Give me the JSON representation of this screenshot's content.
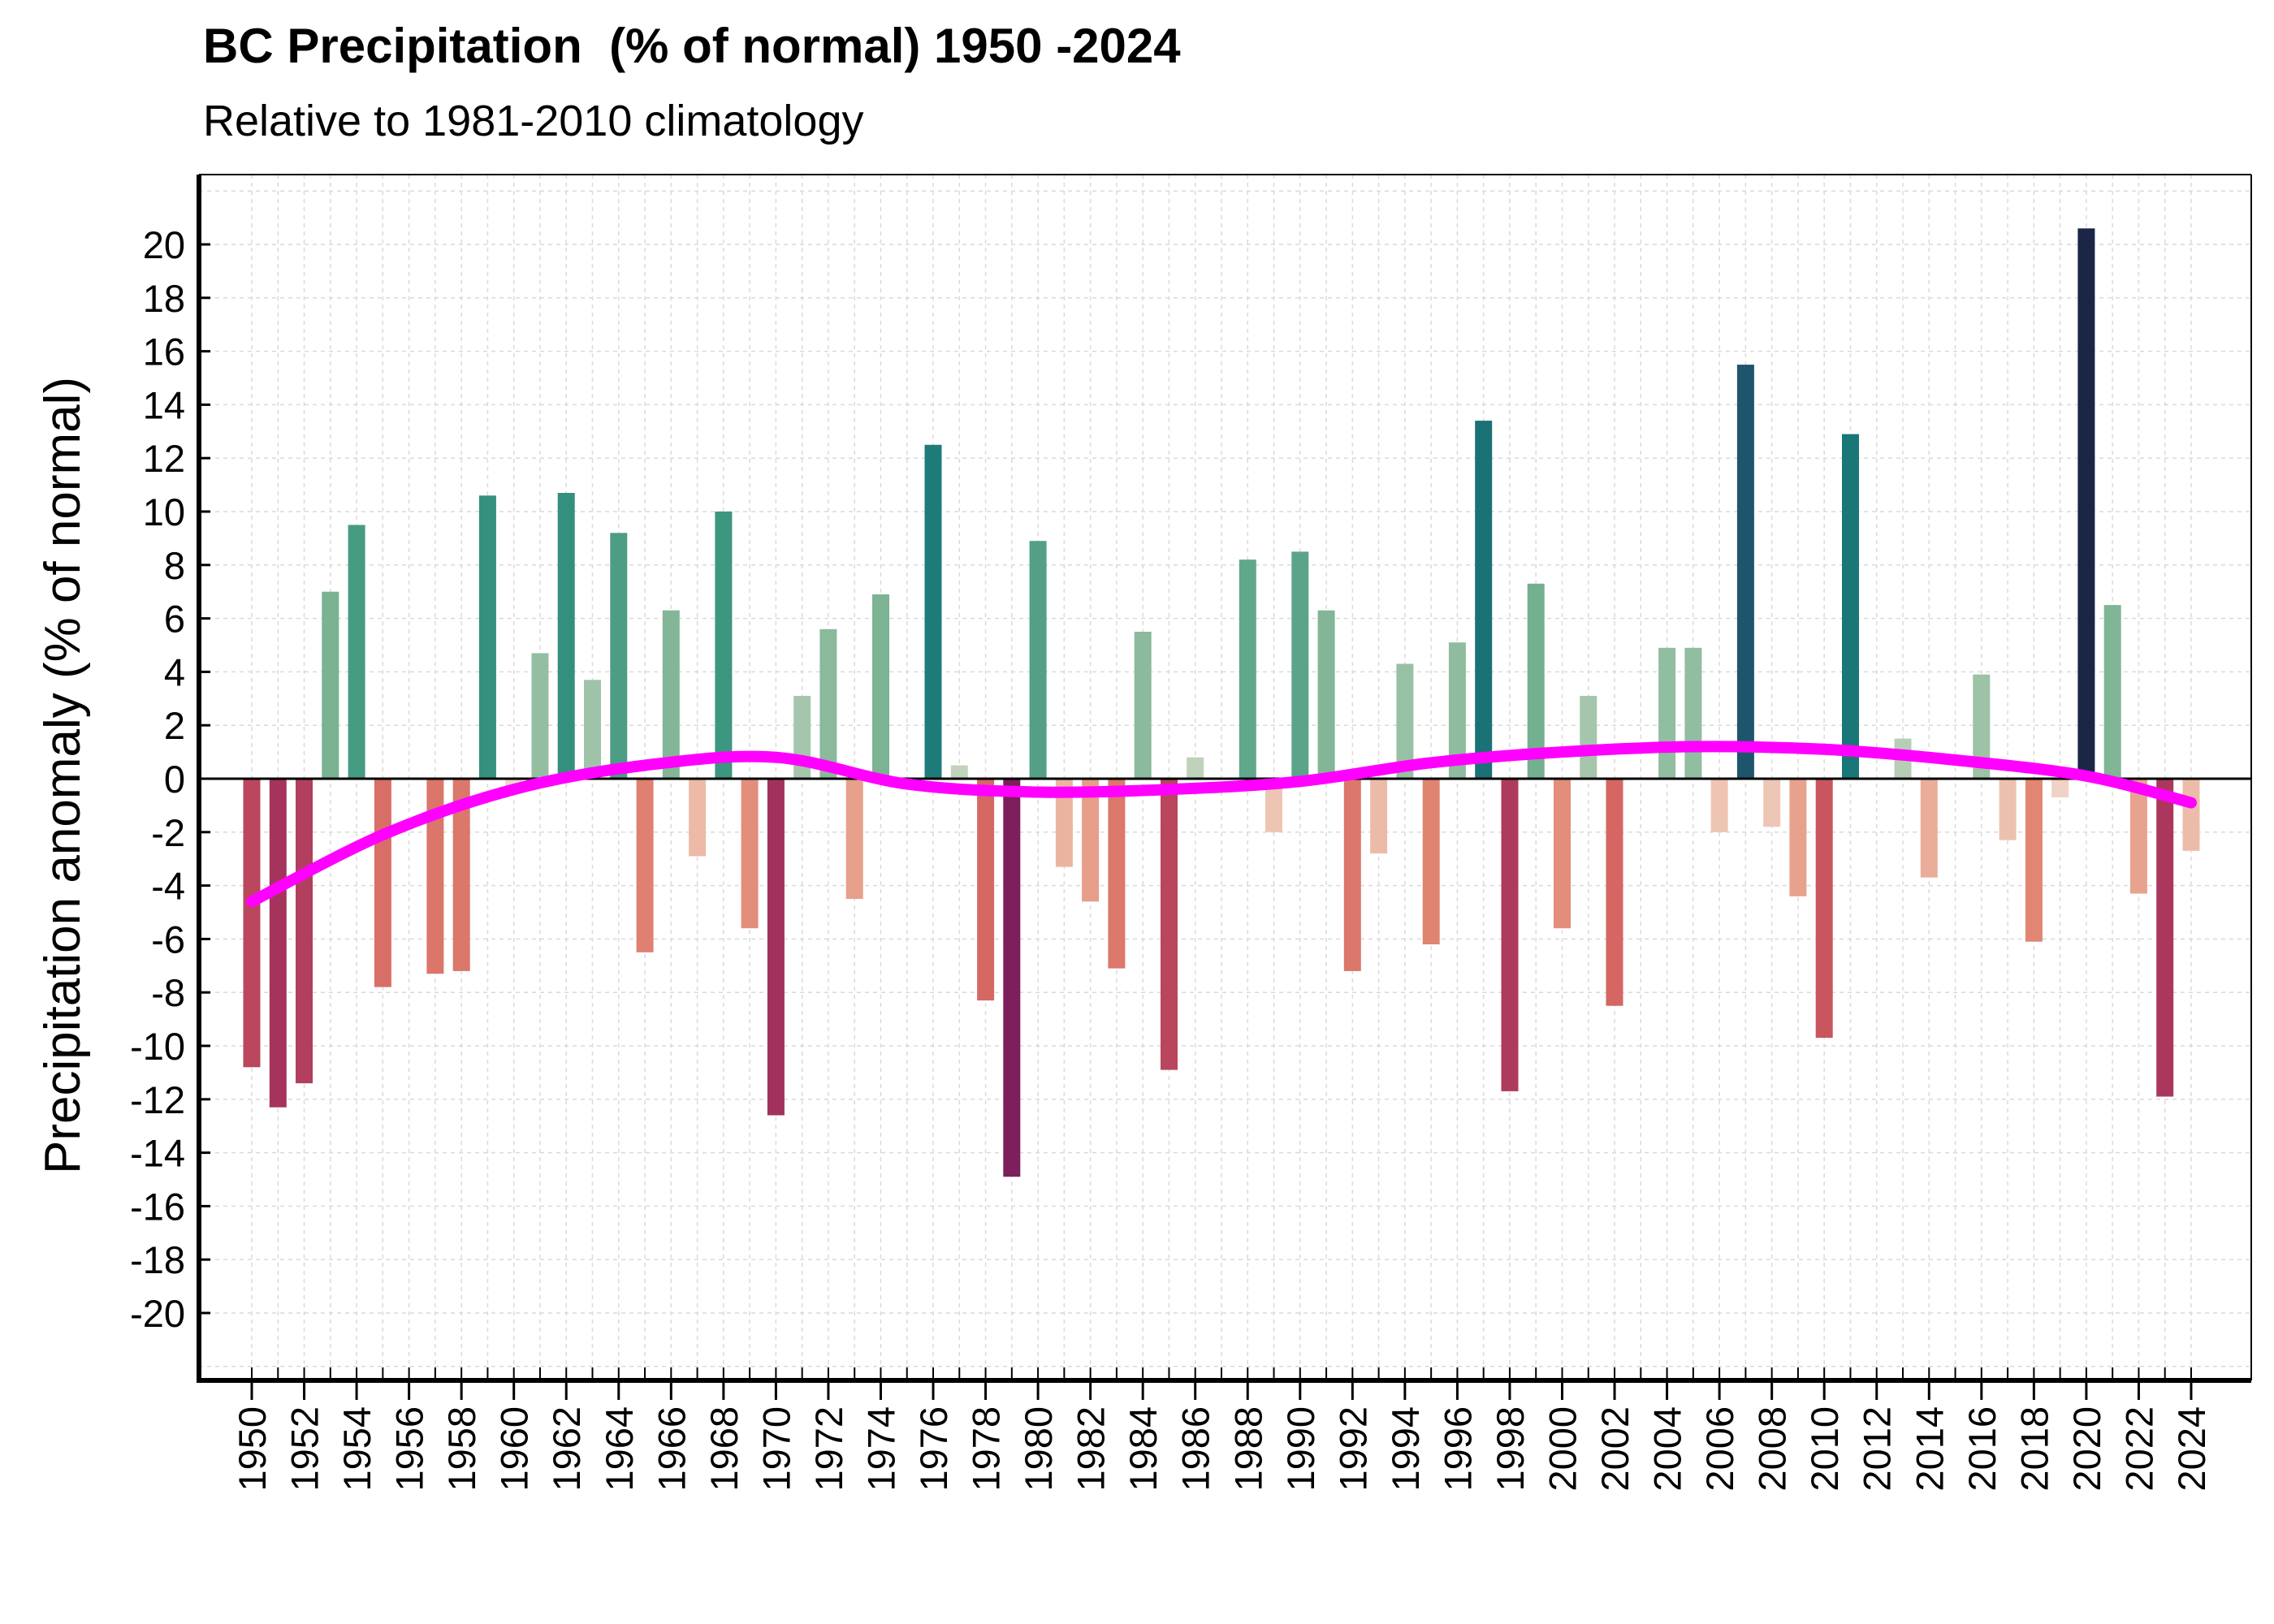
{
  "chart_data": {
    "type": "bar",
    "title": "BC Precipitation  (% of normal) 1950 -2024",
    "subtitle": "Relative to 1981-2010 climatology",
    "ylabel": "Precipitation anomaly (% of normal)",
    "xlabel": "",
    "ylim": [
      -22.5,
      22.5
    ],
    "yticks": [
      20,
      18,
      16,
      14,
      12,
      10,
      8,
      6,
      4,
      2,
      0,
      -2,
      -4,
      -6,
      -8,
      -10,
      -12,
      -14,
      -16,
      -18,
      -20
    ],
    "xticks": [
      1950,
      1952,
      1954,
      1956,
      1958,
      1960,
      1962,
      1964,
      1966,
      1968,
      1970,
      1972,
      1974,
      1976,
      1978,
      1980,
      1982,
      1984,
      1986,
      1988,
      1990,
      1992,
      1994,
      1996,
      1998,
      2000,
      2002,
      2004,
      2006,
      2008,
      2010,
      2012,
      2014,
      2016,
      2018,
      2020,
      2022,
      2024
    ],
    "grid": true,
    "categories": [
      1950,
      1951,
      1952,
      1953,
      1954,
      1955,
      1956,
      1957,
      1958,
      1959,
      1960,
      1961,
      1962,
      1963,
      1964,
      1965,
      1966,
      1967,
      1968,
      1969,
      1970,
      1971,
      1972,
      1973,
      1974,
      1975,
      1976,
      1977,
      1978,
      1979,
      1980,
      1981,
      1982,
      1983,
      1984,
      1985,
      1986,
      1987,
      1988,
      1989,
      1990,
      1991,
      1992,
      1993,
      1994,
      1995,
      1996,
      1997,
      1998,
      1999,
      2000,
      2001,
      2002,
      2003,
      2004,
      2005,
      2006,
      2007,
      2008,
      2009,
      2010,
      2011,
      2012,
      2013,
      2014,
      2015,
      2016,
      2017,
      2018,
      2019,
      2020,
      2021,
      2022,
      2023,
      2024
    ],
    "values": [
      -10.8,
      -12.3,
      -11.4,
      7.0,
      9.5,
      -7.8,
      0.0,
      -7.3,
      -7.2,
      10.6,
      -0.3,
      4.7,
      10.7,
      3.7,
      9.2,
      -6.5,
      6.3,
      -2.9,
      10.0,
      -5.6,
      -12.6,
      3.1,
      5.6,
      -4.5,
      6.9,
      0.0,
      12.5,
      0.5,
      -8.3,
      -14.9,
      8.9,
      -3.3,
      -4.6,
      -7.1,
      5.5,
      -10.9,
      0.8,
      0.0,
      8.2,
      -2.0,
      8.5,
      6.3,
      -7.2,
      -2.8,
      4.3,
      -6.2,
      5.1,
      13.4,
      -11.7,
      7.3,
      -5.6,
      3.1,
      -8.5,
      0.0,
      4.9,
      4.9,
      -2.0,
      15.5,
      -1.8,
      -4.4,
      -9.7,
      12.9,
      0.0,
      1.5,
      -3.7,
      0.0,
      3.9,
      -2.3,
      -6.1,
      -0.7,
      20.6,
      6.5,
      -4.3,
      -11.9,
      -2.7
    ],
    "trend": {
      "x": [
        1950,
        1955,
        1960,
        1965,
        1970,
        1975,
        1980,
        1985,
        1990,
        1995,
        2000,
        2005,
        2010,
        2015,
        2020,
        2024
      ],
      "values": [
        -4.6,
        -2.1,
        -0.4,
        0.5,
        0.8,
        -0.2,
        -0.5,
        -0.4,
        -0.1,
        0.6,
        1.0,
        1.2,
        1.1,
        0.7,
        0.1,
        -0.9
      ],
      "color": "#ff00ff"
    },
    "colors": {
      "strong_positive": "#1b2244",
      "positive": "#197878",
      "weak_positive": "#c8d8c0",
      "weak_negative": "#f2d8cc",
      "negative": "#dd7766",
      "strong_negative": "#7a1e5a"
    }
  }
}
